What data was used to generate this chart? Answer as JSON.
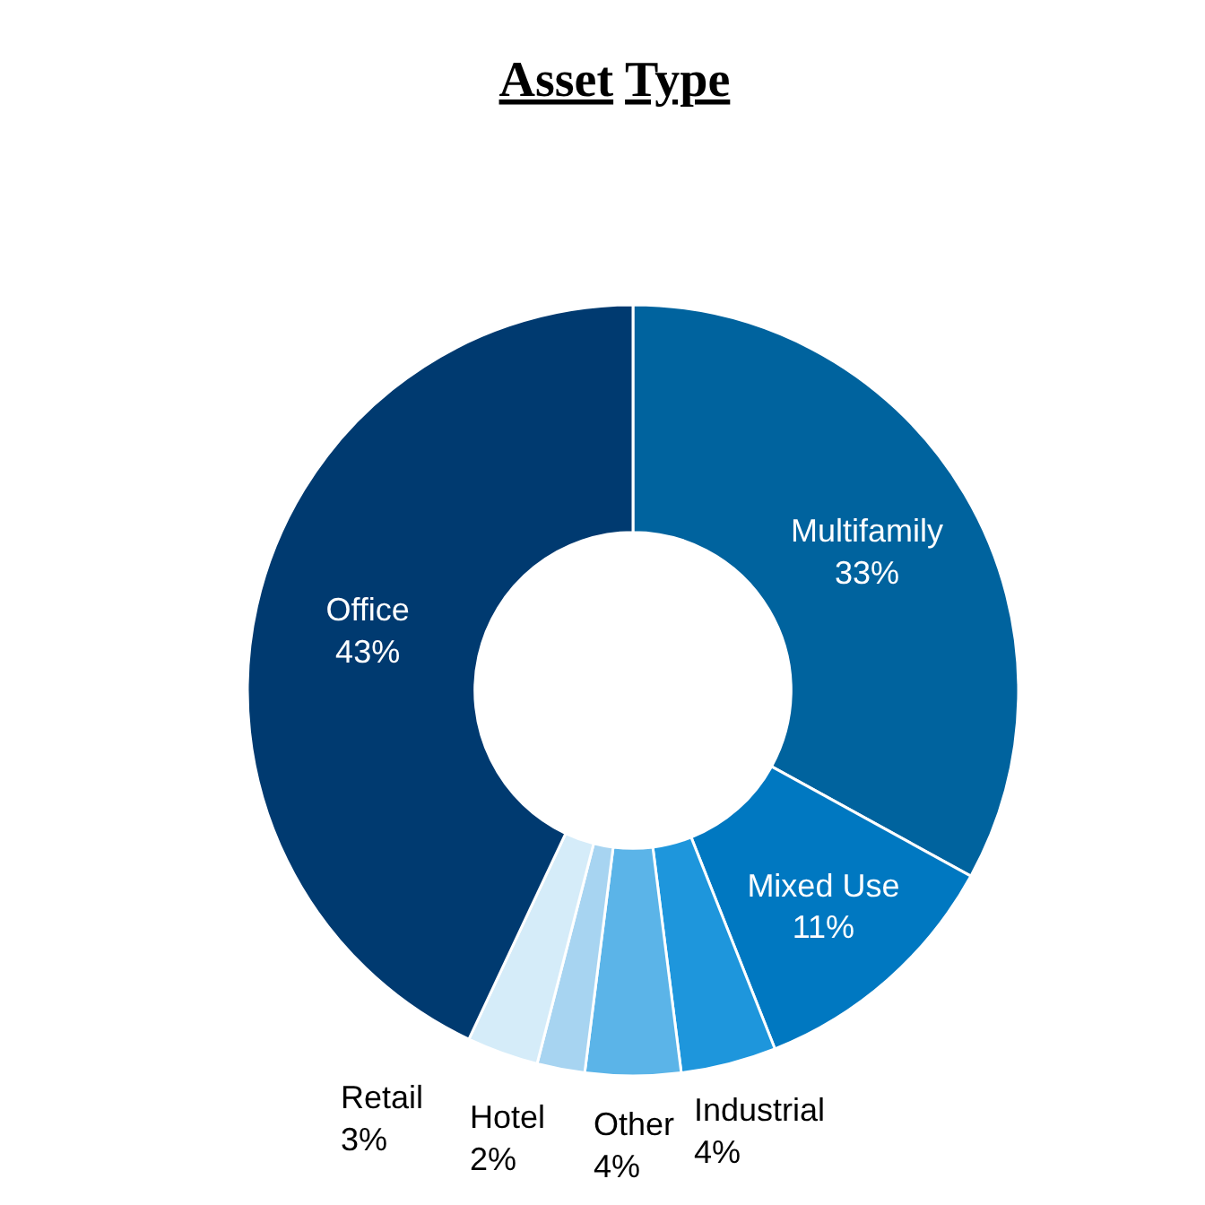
{
  "chart_data": {
    "type": "donut",
    "title": "Asset Type",
    "categories": [
      "Multifamily",
      "Mixed Use",
      "Industrial",
      "Other",
      "Hotel",
      "Retail",
      "Office"
    ],
    "values": [
      33,
      11,
      4,
      4,
      2,
      3,
      43
    ],
    "value_labels": [
      "33%",
      "11%",
      "4%",
      "4%",
      "2%",
      "3%",
      "43%"
    ],
    "colors": [
      "#00639e",
      "#0078c1",
      "#1e96dc",
      "#5bb4e8",
      "#a7d4f1",
      "#d5ecf9",
      "#003a70"
    ]
  }
}
